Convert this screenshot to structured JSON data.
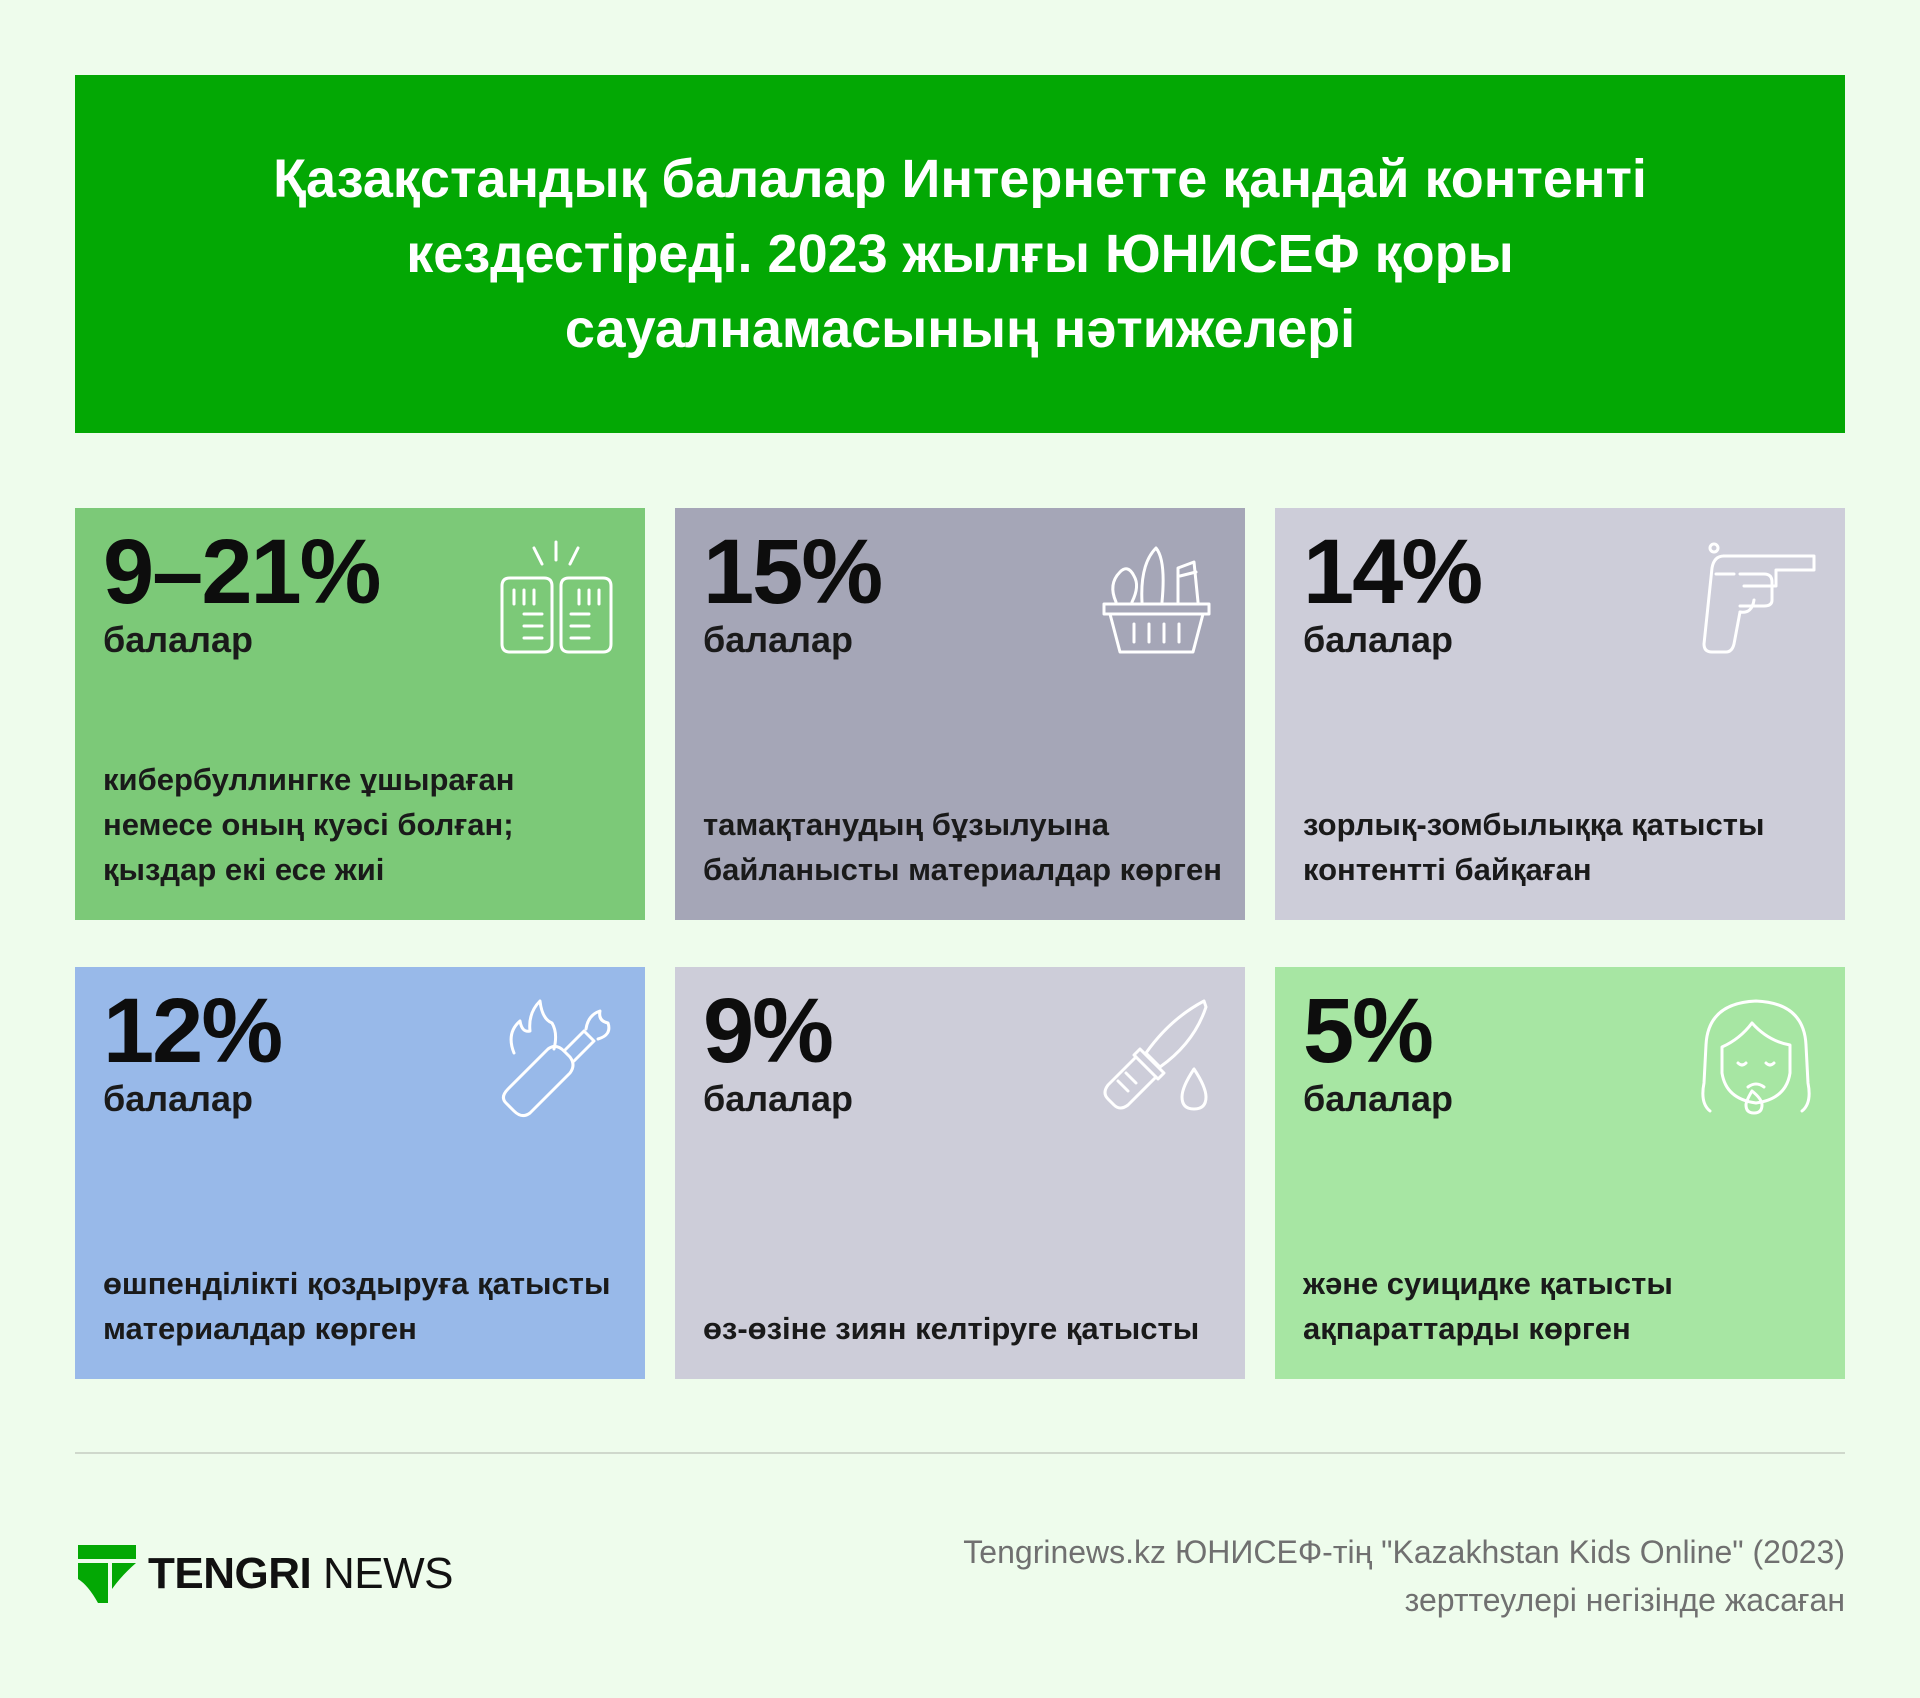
{
  "header": {
    "title": "Қазақстандық балалар Интернетте қандай контенті кездестіреді. 2023 жылғы ЮНИСЕФ қоры сауалнамасының нәтижелері"
  },
  "cards": [
    {
      "percent": "9–21%",
      "unit": "балалар",
      "description": "кибербуллингке ұшыраған немесе оның куәсі болған; қыздар екі есе жиі",
      "icon": "fist-bump-icon",
      "color": "#7cc978"
    },
    {
      "percent": "15%",
      "unit": "балалар",
      "description": "тамақтанудың бұзылуына байланысты материалдар көрген",
      "icon": "food-basket-icon",
      "color": "#a5a6b7"
    },
    {
      "percent": "14%",
      "unit": "балалар",
      "description": "зорлық-зомбылыққа қатысты контентті байқаған",
      "icon": "revolver-icon",
      "color": "#cdcdd9"
    },
    {
      "percent": "12%",
      "unit": "балалар",
      "description": "өшпенділікті қоздыруға қатысты материалдар көрген",
      "icon": "molotov-icon",
      "color": "#98b9e9"
    },
    {
      "percent": "9%",
      "unit": "балалар",
      "description": "өз-өзіне зиян келтіруге қатысты",
      "icon": "knife-drop-icon",
      "color": "#cdcdd9"
    },
    {
      "percent": "5%",
      "unit": "балалар",
      "description": "және суицидке қатысты ақпараттарды көрген",
      "icon": "crying-girl-icon",
      "color": "#a7e6a3"
    }
  ],
  "footer": {
    "logo_bold": "TENGRI",
    "logo_light": " NEWS",
    "source_line1": "Tengrinews.kz ЮНИСЕФ-тің \"Kazakhstan Kids Online\" (2023)",
    "source_line2": "зерттеулері негізінде жасаған"
  }
}
